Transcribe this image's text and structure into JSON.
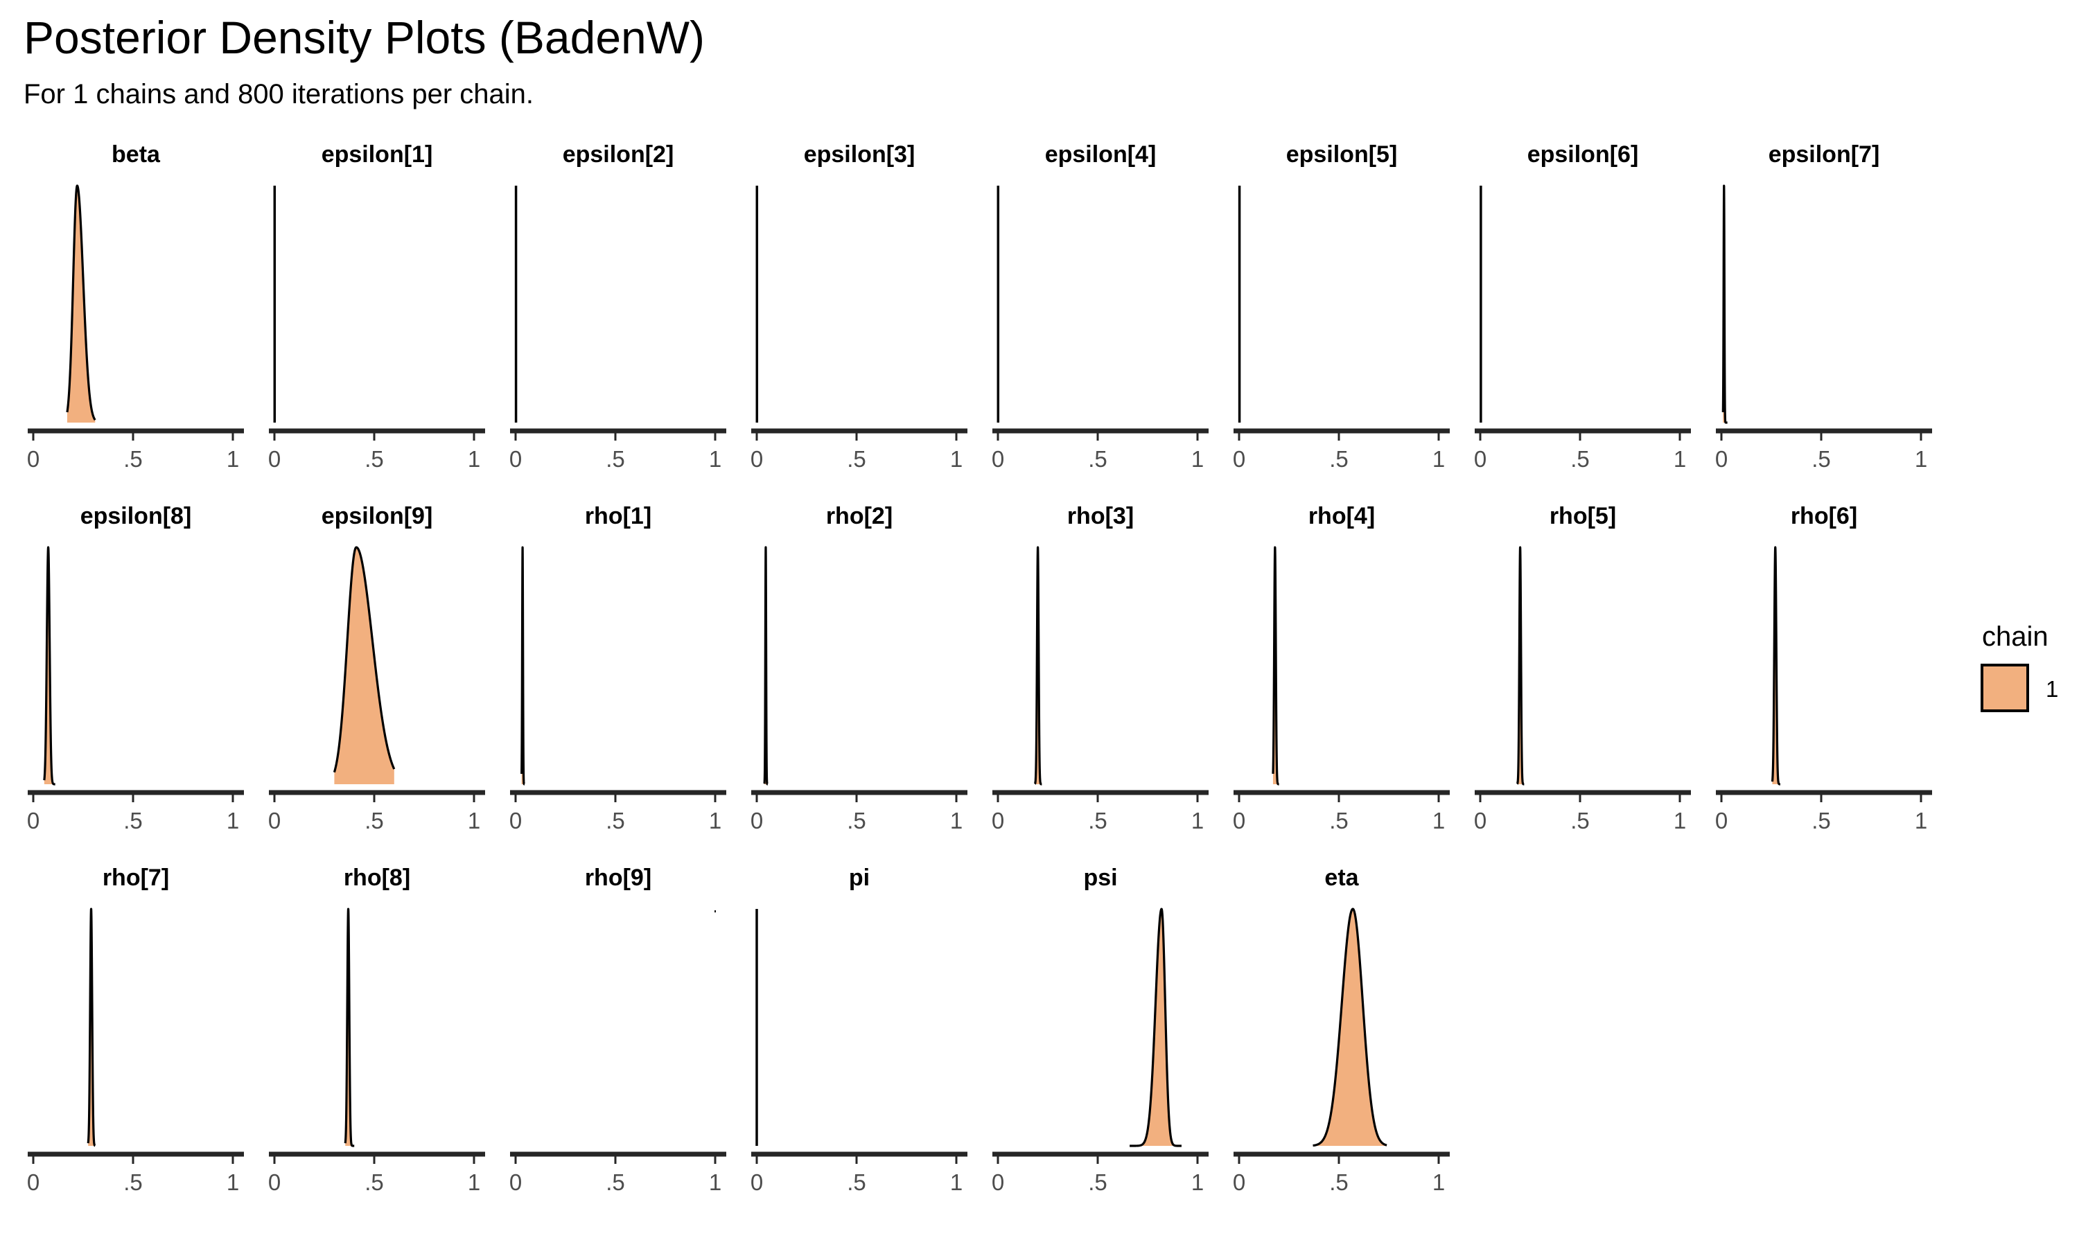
{
  "title": "Posterior Density Plots (BadenW)",
  "subtitle": "For 1 chains and 800 iterations per chain.",
  "colors": {
    "fill": "#f2b07f",
    "line": "#000000",
    "axis": "#262626",
    "tick_text": "#4d4d4d"
  },
  "chart_data": {
    "type": "area",
    "layout": "facet grid, 3 rows x 8 columns",
    "grid": false,
    "legend": {
      "title": "chain",
      "entries": [
        "1"
      ],
      "placement": "right"
    },
    "x_range": [
      0,
      1
    ],
    "x_ticks": [
      0,
      0.5,
      1
    ],
    "x_tick_labels": [
      "0",
      ".5",
      "1"
    ],
    "series_name": "1",
    "facets": [
      {
        "name": "beta",
        "dist": {
          "mean": 0.22,
          "sd": 0.02
        },
        "range": [
          0.17,
          0.31
        ],
        "skew": 1.5
      },
      {
        "name": "epsilon[1]",
        "spike": 0.001
      },
      {
        "name": "epsilon[2]",
        "spike": 0.002
      },
      {
        "name": "epsilon[3]",
        "spike": 0.001
      },
      {
        "name": "epsilon[4]",
        "spike": 0.001
      },
      {
        "name": "epsilon[5]",
        "spike": 0.002
      },
      {
        "name": "epsilon[6]",
        "spike": 0.003
      },
      {
        "name": "epsilon[7]",
        "dist": {
          "mean": 0.013,
          "sd": 0.002
        },
        "range": [
          0.008,
          0.03
        ],
        "skew": 1.0
      },
      {
        "name": "epsilon[8]",
        "dist": {
          "mean": 0.075,
          "sd": 0.007
        },
        "range": [
          0.055,
          0.11
        ],
        "skew": 1.0
      },
      {
        "name": "epsilon[9]",
        "dist": {
          "mean": 0.41,
          "sd": 0.045
        },
        "range": [
          0.3,
          0.6
        ],
        "skew": 1.8
      },
      {
        "name": "rho[1]",
        "dist": {
          "mean": 0.035,
          "sd": 0.002
        },
        "range": [
          0.03,
          0.045
        ],
        "skew": 1.0
      },
      {
        "name": "rho[2]",
        "dist": {
          "mean": 0.045,
          "sd": 0.002
        },
        "range": [
          0.038,
          0.055
        ],
        "skew": 1.0
      },
      {
        "name": "rho[3]",
        "dist": {
          "mean": 0.2,
          "sd": 0.004
        },
        "range": [
          0.185,
          0.22
        ],
        "skew": 1.0
      },
      {
        "name": "rho[4]",
        "dist": {
          "mean": 0.18,
          "sd": 0.004
        },
        "range": [
          0.17,
          0.2
        ],
        "skew": 1.0
      },
      {
        "name": "rho[5]",
        "dist": {
          "mean": 0.2,
          "sd": 0.004
        },
        "range": [
          0.185,
          0.22
        ],
        "skew": 1.0
      },
      {
        "name": "rho[6]",
        "dist": {
          "mean": 0.27,
          "sd": 0.005
        },
        "range": [
          0.255,
          0.295
        ],
        "skew": 1.0
      },
      {
        "name": "rho[7]",
        "dist": {
          "mean": 0.29,
          "sd": 0.005
        },
        "range": [
          0.275,
          0.31
        ],
        "skew": 1.0
      },
      {
        "name": "rho[8]",
        "dist": {
          "mean": 0.37,
          "sd": 0.005
        },
        "range": [
          0.355,
          0.4
        ],
        "skew": 1.0
      },
      {
        "name": "rho[9]",
        "spike": 1.0,
        "tiny": true
      },
      {
        "name": "pi",
        "spike": 0.0
      },
      {
        "name": "psi",
        "dist": {
          "mean": 0.82,
          "sd": 0.03
        },
        "range": [
          0.66,
          0.92
        ],
        "skew": 0.6
      },
      {
        "name": "eta",
        "dist": {
          "mean": 0.57,
          "sd": 0.055
        },
        "range": [
          0.37,
          0.74
        ],
        "skew": 0.9
      }
    ]
  }
}
